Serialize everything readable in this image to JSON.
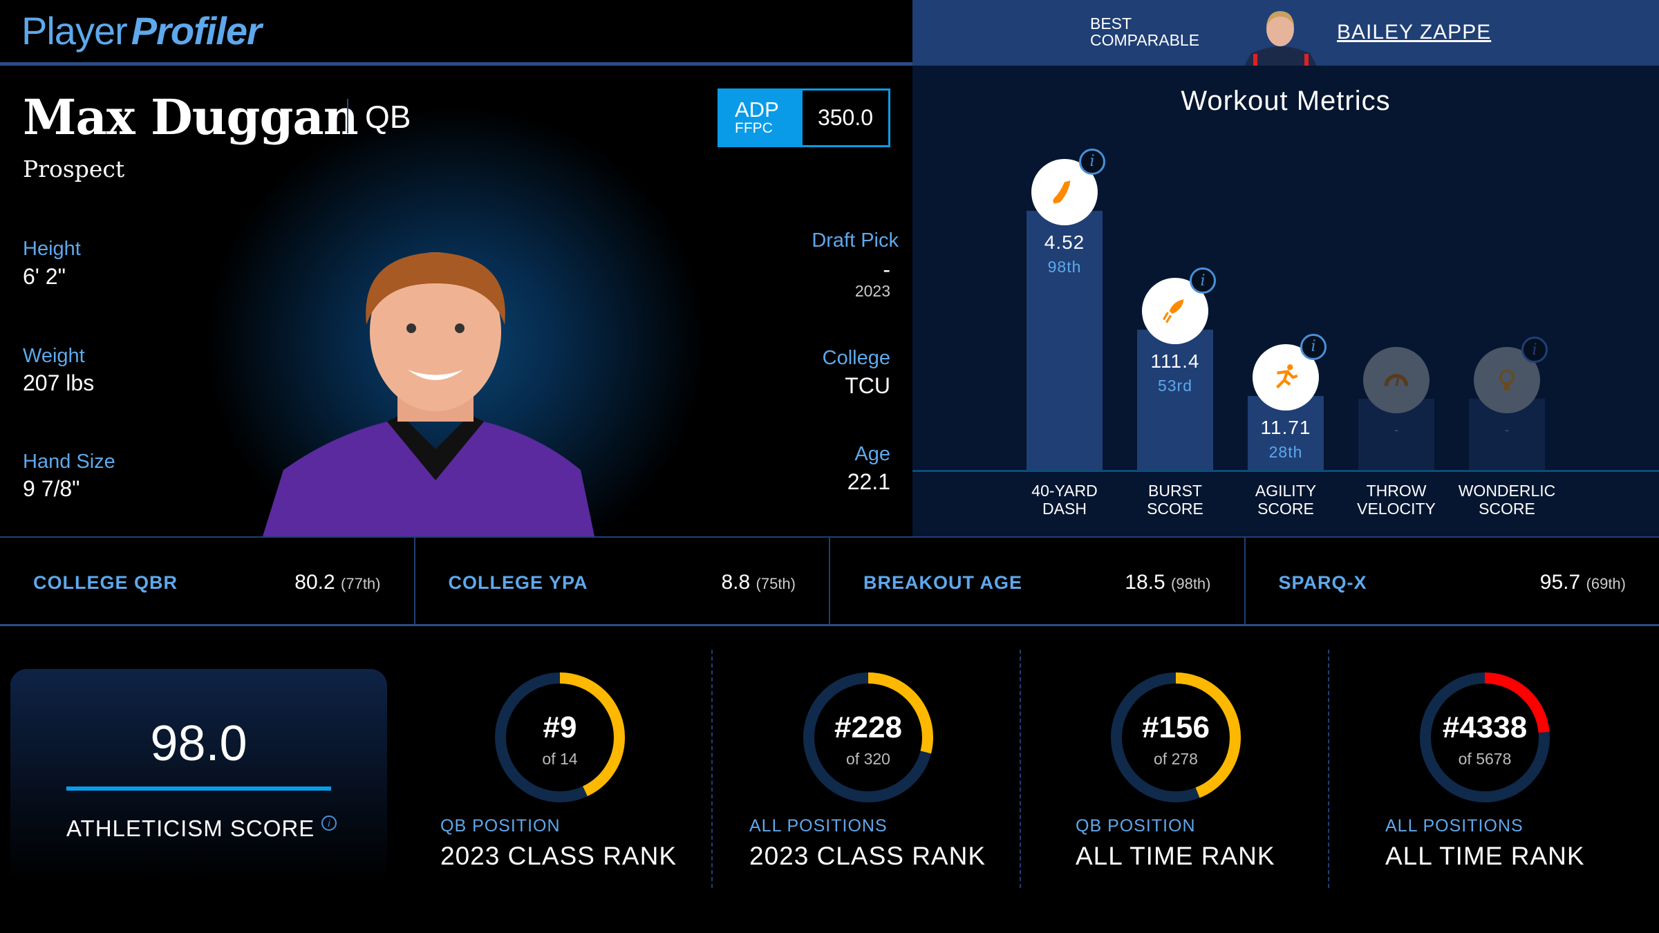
{
  "brand": {
    "part1": "Player",
    "part2": "Profiler"
  },
  "player": {
    "name": "Max Duggan",
    "position": "QB",
    "status": "Prospect"
  },
  "adp": {
    "label": "ADP",
    "source": "FFPC",
    "value": "350.0"
  },
  "bio_left": [
    {
      "label": "Height",
      "value": "6' 2\""
    },
    {
      "label": "Weight",
      "value": "207 lbs"
    },
    {
      "label": "Hand Size",
      "value": "9 7/8\""
    }
  ],
  "draft": {
    "label": "Draft Pick",
    "value": "-",
    "year": "2023"
  },
  "college": {
    "label": "College",
    "value": "TCU"
  },
  "age": {
    "label": "Age",
    "value": "22.1"
  },
  "comparable": {
    "label_line1": "BEST",
    "label_line2": "COMPARABLE",
    "name": "BAILEY ZAPPE"
  },
  "workout": {
    "title": "Workout Metrics",
    "metrics": [
      {
        "label1": "40-YARD",
        "label2": "DASH",
        "value": "4.52",
        "percentile_label": "98th",
        "percentile": 98,
        "icon": "shoe-icon",
        "has_data": true
      },
      {
        "label1": "BURST",
        "label2": "SCORE",
        "value": "111.4",
        "percentile_label": "53rd",
        "percentile": 53,
        "icon": "rocket-icon",
        "has_data": true
      },
      {
        "label1": "AGILITY",
        "label2": "SCORE",
        "value": "11.71",
        "percentile_label": "28th",
        "percentile": 28,
        "icon": "runner-icon",
        "has_data": true
      },
      {
        "label1": "THROW",
        "label2": "VELOCITY",
        "value": "-",
        "icon": "gauge-icon",
        "has_data": false
      },
      {
        "label1": "WONDERLIC",
        "label2": "SCORE",
        "value": "-",
        "icon": "lightbulb-icon",
        "has_data": false
      }
    ]
  },
  "stats": [
    {
      "label": "COLLEGE QBR",
      "value": "80.2",
      "rank": "(77th)"
    },
    {
      "label": "COLLEGE YPA",
      "value": "8.8",
      "rank": "(75th)"
    },
    {
      "label": "BREAKOUT AGE",
      "value": "18.5",
      "rank": "(98th)"
    },
    {
      "label": "SPARQ-X",
      "value": "95.7",
      "rank": "(69th)"
    }
  ],
  "athleticism": {
    "value": "98.0",
    "label": "ATHLETICISM SCORE",
    "info": "i"
  },
  "ranks": [
    {
      "rank": "#9",
      "of": "of 14",
      "sub": "QB POSITION",
      "title": "2023 CLASS RANK",
      "fill": 0.43,
      "color": "#ffb800"
    },
    {
      "rank": "#228",
      "of": "of 320",
      "sub": "ALL POSITIONS",
      "title": "2023 CLASS RANK",
      "fill": 0.29,
      "color": "#ffb800"
    },
    {
      "rank": "#156",
      "of": "of 278",
      "sub": "QB POSITION",
      "title": "ALL TIME RANK",
      "fill": 0.44,
      "color": "#ffb800"
    },
    {
      "rank": "#4338",
      "of": "of 5678",
      "sub": "ALL POSITIONS",
      "title": "ALL TIME RANK",
      "fill": 0.236,
      "color": "#ff0000"
    }
  ],
  "colors": {
    "accent": "#5ea8ec",
    "adp": "#0a9be8",
    "bar": "#1f3f75",
    "ring_track": "#102a4c"
  }
}
